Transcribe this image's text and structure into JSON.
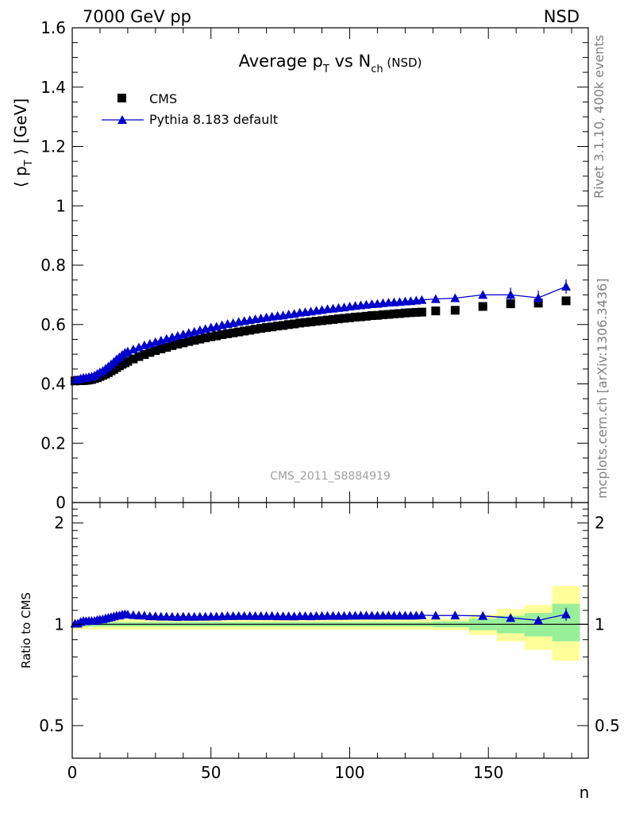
{
  "header": {
    "left": "7000 GeV pp",
    "right": "NSD"
  },
  "side_labels": {
    "rivet": "Rivet 3.1.10,  400k events",
    "mcplots": "mcplots.cern.ch [arXiv:1306.3436]"
  },
  "watermark": "CMS_2011_S8884919",
  "colors": {
    "data": "#000000",
    "mc": "#0000cc",
    "band_inner": "#99ee99",
    "band_outer": "#ffff99"
  },
  "chart_data": [
    {
      "type": "scatter",
      "title": "Average pT vs Nch (NSD)",
      "title_parts": {
        "main": "Average p",
        "sub1": "T",
        "mid": " vs N",
        "sub2": "ch",
        "tail": " (NSD)"
      },
      "ylabel": "⟨ pT ⟩ [GeV]",
      "ylabel_parts": {
        "open": "⟨ p",
        "sub": "T",
        "close": " ⟩ [GeV]"
      },
      "xlim": [
        0,
        186
      ],
      "ylim": [
        0,
        1.6
      ],
      "y_ticks": [
        "0",
        "0.2",
        "0.4",
        "0.6",
        "0.8",
        "1",
        "1.2",
        "1.4",
        "1.6"
      ],
      "legend": {
        "position": "top-left",
        "entries": [
          "CMS",
          "Pythia 8.183 default"
        ]
      },
      "series": [
        {
          "name": "CMS",
          "marker": "square",
          "x": [
            1,
            2,
            3,
            4,
            5,
            6,
            7,
            8,
            9,
            10,
            11,
            12,
            13,
            14,
            15,
            16,
            17,
            18,
            19,
            20,
            22,
            24,
            26,
            28,
            30,
            32,
            34,
            36,
            38,
            40,
            42,
            44,
            46,
            48,
            50,
            52,
            54,
            56,
            58,
            60,
            62,
            64,
            66,
            68,
            70,
            72,
            74,
            76,
            78,
            80,
            82,
            84,
            86,
            88,
            90,
            92,
            94,
            96,
            98,
            100,
            102,
            104,
            106,
            108,
            110,
            112,
            114,
            116,
            118,
            120,
            122,
            124,
            126,
            131,
            138,
            148,
            158,
            168,
            178
          ],
          "y": [
            0.41,
            0.412,
            0.411,
            0.411,
            0.412,
            0.413,
            0.415,
            0.418,
            0.421,
            0.425,
            0.429,
            0.433,
            0.438,
            0.444,
            0.449,
            0.455,
            0.461,
            0.466,
            0.471,
            0.476,
            0.484,
            0.492,
            0.499,
            0.506,
            0.512,
            0.518,
            0.523,
            0.529,
            0.534,
            0.538,
            0.543,
            0.547,
            0.551,
            0.555,
            0.559,
            0.562,
            0.566,
            0.569,
            0.572,
            0.575,
            0.578,
            0.581,
            0.584,
            0.587,
            0.59,
            0.592,
            0.595,
            0.597,
            0.6,
            0.602,
            0.605,
            0.607,
            0.609,
            0.611,
            0.613,
            0.615,
            0.617,
            0.619,
            0.621,
            0.623,
            0.625,
            0.626,
            0.628,
            0.63,
            0.631,
            0.633,
            0.634,
            0.636,
            0.637,
            0.639,
            0.64,
            0.641,
            0.642,
            0.646,
            0.648,
            0.661,
            0.67,
            0.672,
            0.68
          ]
        },
        {
          "name": "Pythia 8.183 default",
          "marker": "triangle",
          "x": [
            1,
            2,
            3,
            4,
            5,
            6,
            7,
            8,
            9,
            10,
            11,
            12,
            13,
            14,
            15,
            16,
            17,
            18,
            19,
            20,
            22,
            24,
            26,
            28,
            30,
            32,
            34,
            36,
            38,
            40,
            42,
            44,
            46,
            48,
            50,
            52,
            54,
            56,
            58,
            60,
            62,
            64,
            66,
            68,
            70,
            72,
            74,
            76,
            78,
            80,
            82,
            84,
            86,
            88,
            90,
            92,
            94,
            96,
            98,
            100,
            102,
            104,
            106,
            108,
            110,
            112,
            114,
            116,
            118,
            120,
            122,
            124,
            126,
            131,
            138,
            148,
            158,
            168,
            178
          ],
          "y": [
            0.412,
            0.414,
            0.418,
            0.421,
            0.421,
            0.423,
            0.425,
            0.428,
            0.434,
            0.439,
            0.444,
            0.451,
            0.458,
            0.466,
            0.474,
            0.483,
            0.49,
            0.498,
            0.505,
            0.509,
            0.516,
            0.523,
            0.53,
            0.535,
            0.541,
            0.546,
            0.552,
            0.557,
            0.562,
            0.567,
            0.572,
            0.576,
            0.581,
            0.585,
            0.59,
            0.593,
            0.598,
            0.602,
            0.605,
            0.609,
            0.612,
            0.615,
            0.618,
            0.621,
            0.624,
            0.627,
            0.629,
            0.631,
            0.634,
            0.636,
            0.64,
            0.642,
            0.644,
            0.647,
            0.649,
            0.652,
            0.654,
            0.656,
            0.658,
            0.661,
            0.663,
            0.665,
            0.667,
            0.669,
            0.67,
            0.672,
            0.674,
            0.675,
            0.676,
            0.678,
            0.679,
            0.681,
            0.683,
            0.686,
            0.689,
            0.7,
            0.7,
            0.69,
            0.728
          ]
        }
      ]
    },
    {
      "type": "line",
      "xlabel": "n",
      "ylabel": "Ratio to CMS",
      "xlim": [
        0,
        186
      ],
      "ylim": [
        0.4,
        2.3
      ],
      "y_scale": "log",
      "y_ticks": [
        "0.5",
        "1",
        "2"
      ],
      "x_ticks": [
        "0",
        "50",
        "100",
        "150"
      ],
      "reference_line": 1,
      "bands": [
        {
          "x0": 0,
          "x1": 130,
          "inner": [
            0.985,
            1.015
          ],
          "outer": [
            0.965,
            1.035
          ]
        },
        {
          "x0": 130,
          "x1": 143,
          "inner": [
            0.98,
            1.02
          ],
          "outer": [
            0.96,
            1.04
          ]
        },
        {
          "x0": 143,
          "x1": 153,
          "inner": [
            0.96,
            1.04
          ],
          "outer": [
            0.93,
            1.07
          ]
        },
        {
          "x0": 153,
          "x1": 163,
          "inner": [
            0.94,
            1.06
          ],
          "outer": [
            0.89,
            1.11
          ]
        },
        {
          "x0": 163,
          "x1": 173,
          "inner": [
            0.92,
            1.08
          ],
          "outer": [
            0.84,
            1.14
          ]
        },
        {
          "x0": 173,
          "x1": 183,
          "inner": [
            0.89,
            1.15
          ],
          "outer": [
            0.78,
            1.3
          ]
        }
      ],
      "series": [
        {
          "name": "Pythia 8.183 default",
          "x": [
            1,
            2,
            3,
            4,
            5,
            6,
            7,
            8,
            9,
            10,
            11,
            12,
            13,
            14,
            15,
            16,
            17,
            18,
            19,
            20,
            22,
            24,
            26,
            28,
            30,
            32,
            34,
            36,
            38,
            40,
            42,
            44,
            46,
            48,
            50,
            52,
            54,
            56,
            58,
            60,
            62,
            64,
            66,
            68,
            70,
            72,
            74,
            76,
            78,
            80,
            82,
            84,
            86,
            88,
            90,
            92,
            94,
            96,
            98,
            100,
            102,
            104,
            106,
            108,
            110,
            112,
            114,
            116,
            118,
            120,
            122,
            124,
            126,
            131,
            138,
            148,
            158,
            168,
            178
          ],
          "y": [
            1.005,
            1.005,
            1.017,
            1.024,
            1.022,
            1.024,
            1.024,
            1.024,
            1.031,
            1.033,
            1.035,
            1.042,
            1.046,
            1.05,
            1.056,
            1.062,
            1.063,
            1.069,
            1.072,
            1.069,
            1.066,
            1.063,
            1.062,
            1.057,
            1.057,
            1.054,
            1.055,
            1.053,
            1.052,
            1.054,
            1.053,
            1.053,
            1.054,
            1.054,
            1.055,
            1.055,
            1.057,
            1.058,
            1.058,
            1.059,
            1.059,
            1.059,
            1.058,
            1.058,
            1.058,
            1.059,
            1.057,
            1.057,
            1.057,
            1.056,
            1.058,
            1.058,
            1.057,
            1.059,
            1.059,
            1.06,
            1.06,
            1.06,
            1.06,
            1.061,
            1.061,
            1.062,
            1.062,
            1.062,
            1.061,
            1.062,
            1.063,
            1.061,
            1.061,
            1.061,
            1.061,
            1.062,
            1.064,
            1.062,
            1.063,
            1.059,
            1.045,
            1.027,
            1.071
          ]
        }
      ]
    }
  ]
}
